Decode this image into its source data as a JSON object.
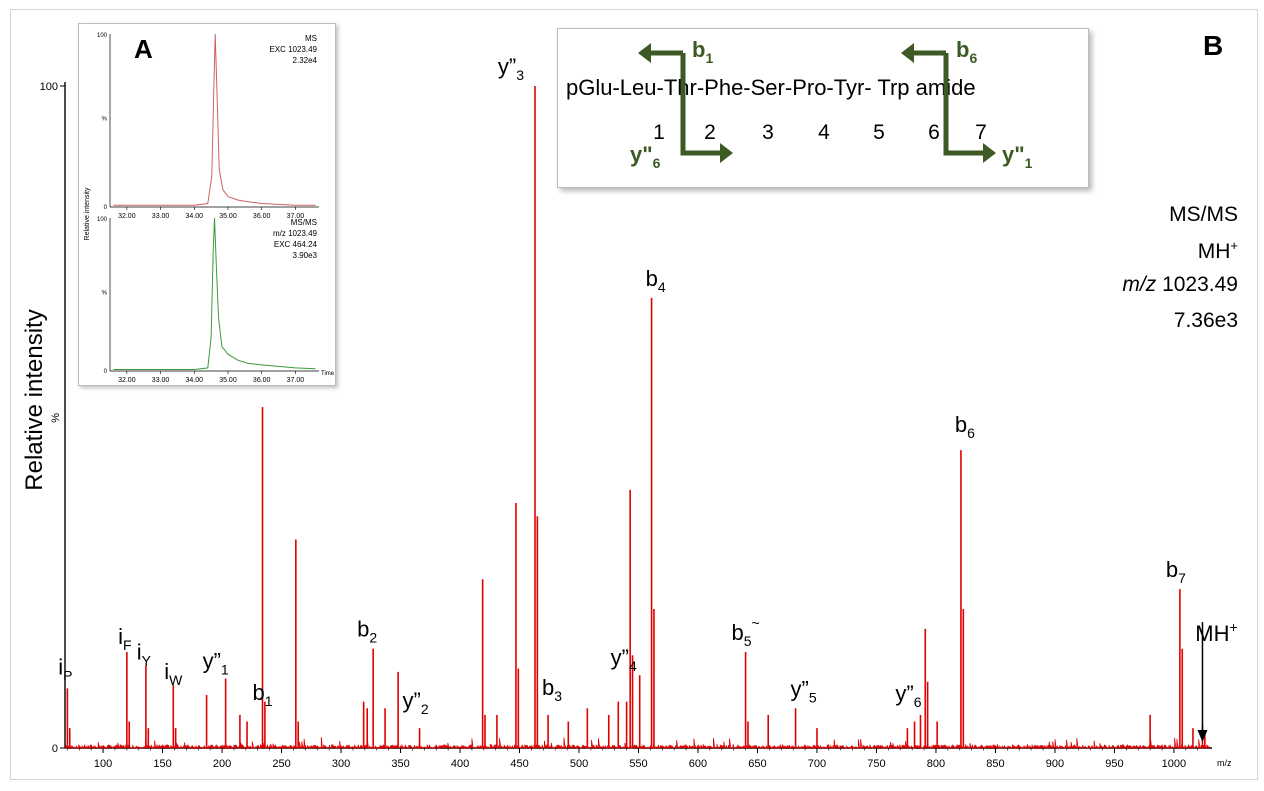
{
  "panel_b_label": "B",
  "panel_a_label": "A",
  "chart_data": [
    {
      "type": "line",
      "panel": "B",
      "ylabel": "Relative intensity",
      "ypercent": "%",
      "xunit": "m/z",
      "xlim": [
        68,
        1032
      ],
      "ylim": [
        0,
        100
      ],
      "xticks": [
        100,
        150,
        200,
        250,
        300,
        350,
        400,
        450,
        500,
        550,
        600,
        650,
        700,
        750,
        800,
        850,
        900,
        950,
        1000
      ],
      "yticks": [
        0,
        100
      ],
      "series_color": "#e00000",
      "info": {
        "line1": "MS/MS",
        "line2_text": "MH",
        "line2_sup": "+",
        "line3_italic": "m/z",
        "line3_value": "1023.49",
        "line4": "7.36e3"
      },
      "peaks": [
        {
          "x": 70,
          "y": 9
        },
        {
          "x": 72,
          "y": 3
        },
        {
          "x": 120,
          "y": 14.5
        },
        {
          "x": 122,
          "y": 4
        },
        {
          "x": 136,
          "y": 12.5
        },
        {
          "x": 138,
          "y": 3
        },
        {
          "x": 159,
          "y": 9.5
        },
        {
          "x": 161,
          "y": 3
        },
        {
          "x": 187,
          "y": 8
        },
        {
          "x": 203,
          "y": 10.5
        },
        {
          "x": 215,
          "y": 5
        },
        {
          "x": 221,
          "y": 4
        },
        {
          "x": 234,
          "y": 51.5
        },
        {
          "x": 236,
          "y": 7
        },
        {
          "x": 262,
          "y": 31.5
        },
        {
          "x": 264,
          "y": 4
        },
        {
          "x": 319,
          "y": 7
        },
        {
          "x": 322,
          "y": 6
        },
        {
          "x": 327,
          "y": 15
        },
        {
          "x": 337,
          "y": 6
        },
        {
          "x": 348,
          "y": 11.5
        },
        {
          "x": 366,
          "y": 3
        },
        {
          "x": 419,
          "y": 25.5
        },
        {
          "x": 421,
          "y": 5
        },
        {
          "x": 431,
          "y": 5
        },
        {
          "x": 447,
          "y": 37
        },
        {
          "x": 449,
          "y": 12
        },
        {
          "x": 463,
          "y": 100
        },
        {
          "x": 465,
          "y": 35
        },
        {
          "x": 474,
          "y": 5
        },
        {
          "x": 491,
          "y": 4
        },
        {
          "x": 507,
          "y": 6
        },
        {
          "x": 525,
          "y": 5
        },
        {
          "x": 533,
          "y": 7
        },
        {
          "x": 540,
          "y": 7
        },
        {
          "x": 543,
          "y": 39
        },
        {
          "x": 545,
          "y": 14
        },
        {
          "x": 551,
          "y": 11
        },
        {
          "x": 561,
          "y": 68
        },
        {
          "x": 563,
          "y": 21
        },
        {
          "x": 640,
          "y": 14.5
        },
        {
          "x": 642,
          "y": 4
        },
        {
          "x": 659,
          "y": 5
        },
        {
          "x": 682,
          "y": 6
        },
        {
          "x": 700,
          "y": 3
        },
        {
          "x": 776,
          "y": 3
        },
        {
          "x": 782,
          "y": 4
        },
        {
          "x": 787,
          "y": 5
        },
        {
          "x": 791,
          "y": 18
        },
        {
          "x": 793,
          "y": 10
        },
        {
          "x": 801,
          "y": 4
        },
        {
          "x": 821,
          "y": 45
        },
        {
          "x": 823,
          "y": 21
        },
        {
          "x": 980,
          "y": 5
        },
        {
          "x": 1005,
          "y": 24
        },
        {
          "x": 1007,
          "y": 15
        },
        {
          "x": 1016,
          "y": 3
        },
        {
          "x": 1024,
          "y": 3.5
        },
        {
          "x": 1026,
          "y": 2
        }
      ],
      "annotations": [
        {
          "base": "i",
          "sub": "P",
          "x": 70,
          "y": 9
        },
        {
          "base": "i",
          "sub": "F",
          "x": 120,
          "y": 14.5
        },
        {
          "base": "i",
          "sub": "Y",
          "x": 136,
          "y": 12.5
        },
        {
          "base": "i",
          "sub": "W",
          "x": 159,
          "y": 9.5
        },
        {
          "base": "y”",
          "sub": "1",
          "x": 203,
          "y": 10.5
        },
        {
          "base": "b",
          "sub": "1",
          "x": 234,
          "y": 3
        },
        {
          "base": "b",
          "sub": "2",
          "x": 327,
          "y": 15
        },
        {
          "base": "y”",
          "sub": "2",
          "x": 366,
          "y": 3
        },
        {
          "base": "y”",
          "sub": "3",
          "x": 463,
          "y": 100
        },
        {
          "base": "b",
          "sub": "3",
          "x": 474,
          "y": 5
        },
        {
          "base": "y”",
          "sub": "4",
          "x": 551,
          "y": 11
        },
        {
          "base": "b",
          "sub": "4",
          "x": 561,
          "y": 68
        },
        {
          "base": "b",
          "sub": "5",
          "sup": "~",
          "x": 640,
          "y": 14.5
        },
        {
          "base": "y”",
          "sub": "5",
          "x": 682,
          "y": 6
        },
        {
          "base": "y”",
          "sub": "6",
          "x": 787,
          "y": 5
        },
        {
          "base": "b",
          "sub": "6",
          "x": 821,
          "y": 45
        },
        {
          "base": "b",
          "sub": "7",
          "x": 1005,
          "y": 24
        },
        {
          "base": "MH",
          "sup": "+",
          "x": 1024,
          "y": 3.5
        }
      ]
    },
    {
      "type": "line",
      "panel": "A-top",
      "xlim": [
        31.5,
        37.7
      ],
      "ylim": [
        0,
        100
      ],
      "xticks": [
        "32.00",
        "33.00",
        "34.00",
        "35.00",
        "36.00",
        "37.00"
      ],
      "ytick_top": "100",
      "ytick_mid": "%",
      "ytick_zero": "0",
      "series_color": "#d06060",
      "info": [
        "MS",
        "EXC 1023.49",
        "2.32e4"
      ],
      "points": [
        [
          31.6,
          1
        ],
        [
          32.0,
          1
        ],
        [
          32.5,
          1
        ],
        [
          33.0,
          1
        ],
        [
          33.5,
          1
        ],
        [
          34.0,
          1
        ],
        [
          34.4,
          2
        ],
        [
          34.52,
          18
        ],
        [
          34.58,
          68
        ],
        [
          34.62,
          100
        ],
        [
          34.68,
          62
        ],
        [
          34.74,
          22
        ],
        [
          34.85,
          10
        ],
        [
          35.0,
          6
        ],
        [
          35.3,
          4
        ],
        [
          35.6,
          3
        ],
        [
          36.0,
          2
        ],
        [
          36.5,
          1.5
        ],
        [
          37.0,
          1
        ],
        [
          37.6,
          1
        ]
      ]
    },
    {
      "type": "line",
      "panel": "A-bottom",
      "xlim": [
        31.5,
        37.7
      ],
      "ylim": [
        0,
        100
      ],
      "xticks": [
        "32.00",
        "33.00",
        "34.00",
        "35.00",
        "36.00",
        "37.00"
      ],
      "ytick_top": "100",
      "ytick_mid": "%",
      "ytick_zero": "0",
      "xunit": "Time",
      "ylabel": "Relative intensity",
      "series_color": "#3a9a3a",
      "info": [
        "MS/MS",
        "m/z 1023.49",
        "EXC 464.24",
        "3.90e3"
      ],
      "points": [
        [
          31.6,
          1
        ],
        [
          32.0,
          1
        ],
        [
          32.5,
          1
        ],
        [
          33.0,
          1
        ],
        [
          33.5,
          1
        ],
        [
          34.0,
          1
        ],
        [
          34.4,
          2
        ],
        [
          34.5,
          22
        ],
        [
          34.56,
          78
        ],
        [
          34.6,
          100
        ],
        [
          34.66,
          66
        ],
        [
          34.72,
          35
        ],
        [
          34.82,
          16
        ],
        [
          35.0,
          11
        ],
        [
          35.3,
          7
        ],
        [
          35.6,
          5
        ],
        [
          36.0,
          4
        ],
        [
          36.5,
          3
        ],
        [
          37.0,
          2
        ],
        [
          37.6,
          1.5
        ]
      ]
    }
  ],
  "sequence": {
    "text": "pGlu-Leu-Thr-Phe-Ser-Pro-Tyr- Trp amide",
    "numbers": [
      "1",
      "2",
      "3",
      "4",
      "5",
      "6",
      "7"
    ],
    "arrows": [
      {
        "base": "b",
        "sub": "1"
      },
      {
        "base": "y\"",
        "sub": "6"
      },
      {
        "base": "b",
        "sub": "6"
      },
      {
        "base": "y\"",
        "sub": "1"
      }
    ],
    "arrow_color": "#3d5a24"
  }
}
